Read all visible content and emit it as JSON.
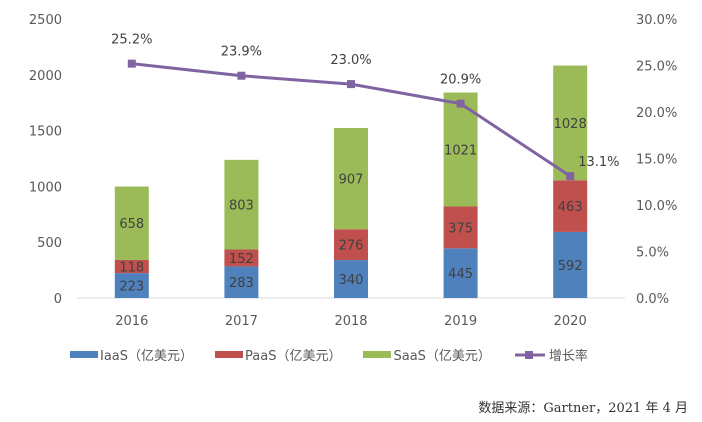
{
  "chart_data": {
    "type": "bar",
    "stacked": true,
    "categories": [
      "2016",
      "2017",
      "2018",
      "2019",
      "2020"
    ],
    "series": [
      {
        "name": "IaaS（亿美元）",
        "values": [
          223,
          283,
          340,
          445,
          592
        ],
        "color": "#4f81bd",
        "axis": "left"
      },
      {
        "name": "PaaS（亿美元）",
        "values": [
          118,
          152,
          276,
          375,
          463
        ],
        "color": "#c0504d",
        "axis": "left"
      },
      {
        "name": "SaaS（亿美元）",
        "values": [
          658,
          803,
          907,
          1021,
          1028
        ],
        "color": "#9bbb59",
        "axis": "left"
      },
      {
        "name": "增长率",
        "type": "line",
        "values": [
          25.2,
          23.9,
          23.0,
          20.9,
          13.1
        ],
        "labels": [
          "25.2%",
          "23.9%",
          "23.0%",
          "20.9%",
          "13.1%"
        ],
        "color": "#8064a2",
        "axis": "right"
      }
    ],
    "ylim": [
      0,
      2500
    ],
    "yticks": [
      "0",
      "500",
      "1000",
      "1500",
      "2000",
      "2500"
    ],
    "y2lim": [
      0,
      30
    ],
    "y2ticks": [
      "0.0%",
      "5.0%",
      "10.0%",
      "15.0%",
      "20.0%",
      "25.0%",
      "30.0%"
    ],
    "grid": false,
    "legend": "bottom"
  },
  "source": "数据来源：Gartner，2021 年 4 月"
}
